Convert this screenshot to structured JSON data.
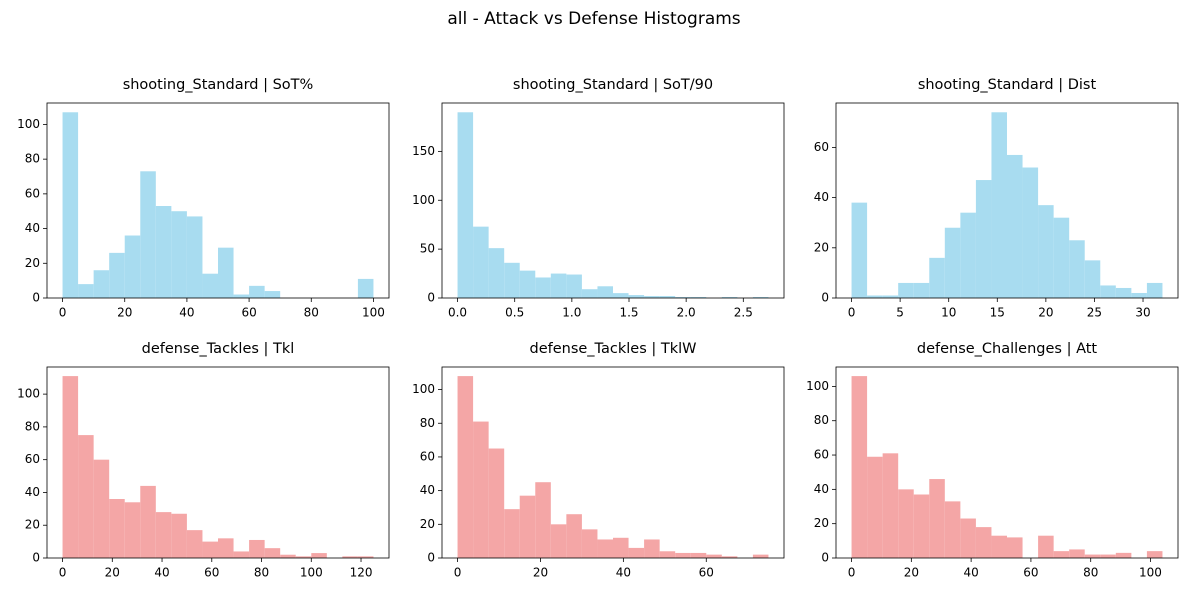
{
  "title": "all - Attack vs Defense Histograms",
  "chart_data": [
    {
      "type": "histogram",
      "title": "shooting_Standard | SoT%",
      "color": "#a8dcf0",
      "bins": [
        0,
        5,
        10,
        15,
        20,
        25,
        30,
        35,
        40,
        45,
        50,
        55,
        60,
        65,
        70,
        75,
        80,
        85,
        90,
        95,
        100
      ],
      "counts": [
        107,
        8,
        16,
        26,
        36,
        73,
        53,
        50,
        47,
        14,
        29,
        2,
        7,
        4,
        0,
        0,
        0,
        0,
        0,
        11
      ],
      "xlim": [
        -5,
        105
      ],
      "ylim": [
        0,
        112.35
      ],
      "xticks": [
        0,
        20,
        40,
        60,
        80,
        100
      ],
      "yticks": [
        0,
        20,
        40,
        60,
        80,
        100
      ]
    },
    {
      "type": "histogram",
      "title": "shooting_Standard | SoT/90",
      "color": "#a8dcf0",
      "bins": [
        0,
        0.136,
        0.272,
        0.408,
        0.544,
        0.68,
        0.816,
        0.952,
        1.088,
        1.224,
        1.36,
        1.496,
        1.632,
        1.768,
        1.904,
        2.04,
        2.176,
        2.312,
        2.448,
        2.584,
        2.72
      ],
      "counts": [
        190,
        73,
        51,
        36,
        28,
        21,
        25,
        24,
        9,
        12,
        5,
        3,
        2,
        2,
        1,
        1,
        0,
        1,
        0,
        1
      ],
      "xlim": [
        -0.136,
        2.856
      ],
      "ylim": [
        0,
        199.5
      ],
      "xticks": [
        {
          "value": 0,
          "label": "0.0"
        },
        {
          "value": 0.5,
          "label": "0.5"
        },
        {
          "value": 1,
          "label": "1.0"
        },
        {
          "value": 1.5,
          "label": "1.5"
        },
        {
          "value": 2,
          "label": "2.0"
        },
        {
          "value": 2.5,
          "label": "2.5"
        }
      ],
      "yticks": [
        0,
        50,
        100,
        150
      ]
    },
    {
      "type": "histogram",
      "title": "shooting_Standard | Dist",
      "color": "#a8dcf0",
      "bins": [
        0,
        1.6,
        3.2,
        4.8,
        6.4,
        8,
        9.6,
        11.2,
        12.8,
        14.4,
        16,
        17.6,
        19.2,
        20.8,
        22.4,
        24,
        25.6,
        27.2,
        28.8,
        30.4,
        32
      ],
      "counts": [
        38,
        1,
        1,
        6,
        6,
        16,
        28,
        34,
        47,
        74,
        57,
        52,
        37,
        32,
        23,
        15,
        5,
        4,
        2,
        6
      ],
      "xlim": [
        -1.6,
        33.6
      ],
      "ylim": [
        0,
        77.7
      ],
      "xticks": [
        0,
        5,
        10,
        15,
        20,
        25,
        30
      ],
      "yticks": [
        0,
        20,
        40,
        60
      ]
    },
    {
      "type": "histogram",
      "title": "defense_Tackles | Tkl",
      "color": "#f4a6a6",
      "bins": [
        0,
        6.25,
        12.5,
        18.75,
        25,
        31.25,
        37.5,
        43.75,
        50,
        56.25,
        62.5,
        68.75,
        75,
        81.25,
        87.5,
        93.75,
        100,
        106.25,
        112.5,
        118.75,
        125
      ],
      "counts": [
        111,
        75,
        60,
        36,
        34,
        44,
        28,
        27,
        17,
        10,
        12,
        4,
        11,
        6,
        2,
        1,
        3,
        0,
        1,
        1
      ],
      "xlim": [
        -6.25,
        131.25
      ],
      "ylim": [
        0,
        116.55
      ],
      "xticks": [
        0,
        20,
        40,
        60,
        80,
        100,
        120
      ],
      "yticks": [
        0,
        20,
        40,
        60,
        80,
        100
      ]
    },
    {
      "type": "histogram",
      "title": "defense_Tackles | TklW",
      "color": "#f4a6a6",
      "bins": [
        0,
        3.75,
        7.5,
        11.25,
        15,
        18.75,
        22.5,
        26.25,
        30,
        33.75,
        37.5,
        41.25,
        45,
        48.75,
        52.5,
        56.25,
        60,
        63.75,
        67.5,
        71.25,
        75
      ],
      "counts": [
        108,
        81,
        65,
        29,
        37,
        45,
        20,
        26,
        17,
        11,
        12,
        6,
        11,
        4,
        3,
        3,
        2,
        1,
        0,
        2
      ],
      "xlim": [
        -3.75,
        78.75
      ],
      "ylim": [
        0,
        113.4
      ],
      "xticks": [
        0,
        20,
        40,
        60
      ],
      "yticks": [
        0,
        20,
        40,
        60,
        80,
        100
      ]
    },
    {
      "type": "histogram",
      "title": "defense_Challenges | Att",
      "color": "#f4a6a6",
      "bins": [
        0,
        5.2,
        10.4,
        15.6,
        20.8,
        26,
        31.2,
        36.4,
        41.6,
        46.8,
        52,
        57.2,
        62.4,
        67.6,
        72.8,
        78,
        83.2,
        88.4,
        93.6,
        98.8,
        104
      ],
      "counts": [
        106,
        59,
        61,
        40,
        37,
        46,
        33,
        23,
        18,
        13,
        12,
        0,
        13,
        4,
        5,
        2,
        2,
        3,
        0,
        4
      ],
      "xlim": [
        -5.2,
        109.2
      ],
      "ylim": [
        0,
        111.3
      ],
      "xticks": [
        0,
        20,
        40,
        60,
        80,
        100
      ],
      "yticks": [
        0,
        20,
        40,
        60,
        80,
        100
      ]
    }
  ]
}
